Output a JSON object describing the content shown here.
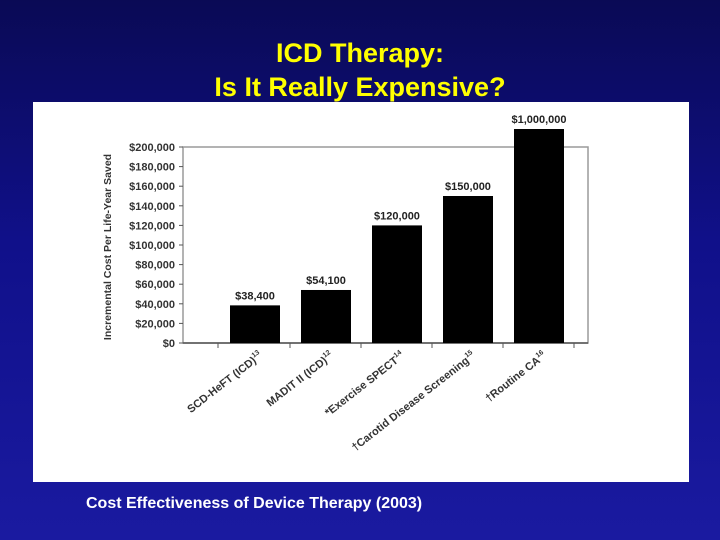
{
  "slide": {
    "title_line1": "ICD Therapy:",
    "title_line2": "Is It Really Expensive?",
    "caption": "Cost Effectiveness of Device Therapy (2003)"
  },
  "colors": {
    "title": "#ffff00",
    "background": "#10108a",
    "bar": "#000000",
    "caption": "#ffffff"
  },
  "chart_data": {
    "type": "bar",
    "ylabel": "Incremental Cost Per Life-Year Saved",
    "ylim": [
      0,
      200000
    ],
    "yticks": [
      "$0",
      "$20,000",
      "$40,000",
      "$60,000",
      "$80,000",
      "$100,000",
      "$120,000",
      "$140,000",
      "$160,000",
      "$180,000",
      "$200,000"
    ],
    "ytick_values": [
      0,
      20000,
      40000,
      60000,
      80000,
      100000,
      120000,
      140000,
      160000,
      180000,
      200000
    ],
    "categories": [
      {
        "name": "SCD-HeFT (ICD)",
        "sup": "13"
      },
      {
        "name": "MADIT II (ICD)",
        "sup": "12"
      },
      {
        "name": "*Exercise SPECT",
        "sup": "14"
      },
      {
        "name": "†Carotid Disease Screening",
        "sup": "15"
      },
      {
        "name": "†Routine CA",
        "sup": "16"
      }
    ],
    "values": [
      38400,
      54100,
      120000,
      150000,
      1000000
    ],
    "data_labels": [
      "$38,400",
      "$54,100",
      "$120,000",
      "$150,000",
      "$1,000,000"
    ],
    "grid": false
  }
}
